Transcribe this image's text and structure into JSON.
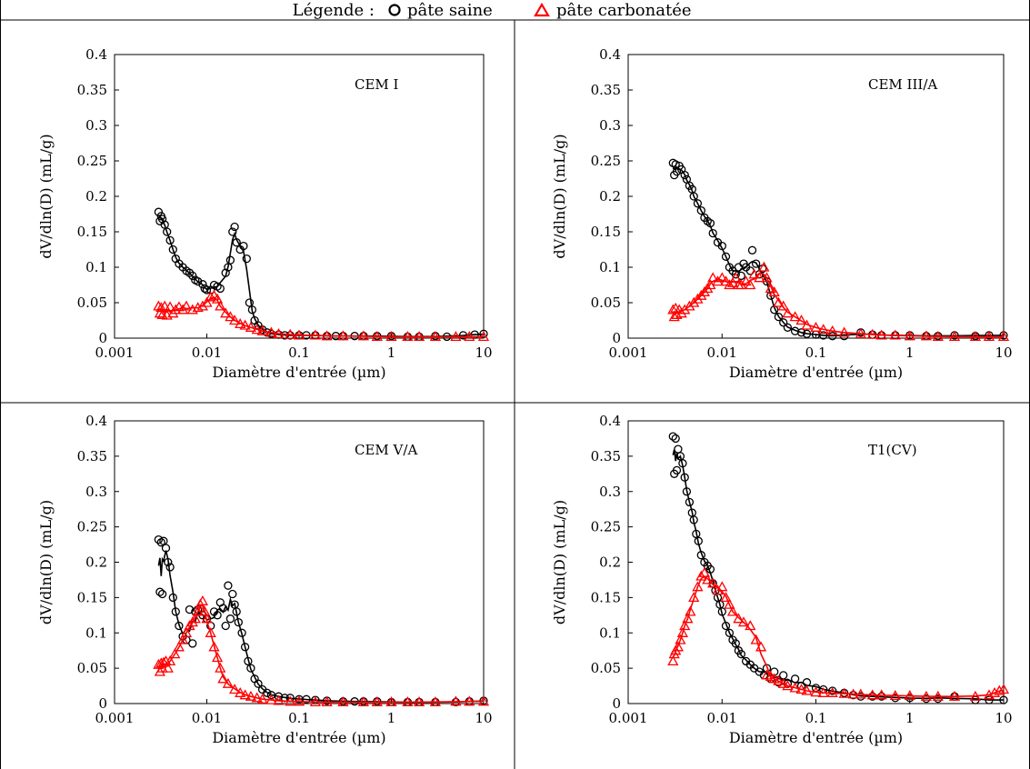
{
  "legend": {
    "label": "Légende :",
    "items": [
      {
        "name": "pâte saine",
        "marker": "circle",
        "color": "#000000"
      },
      {
        "name": "pâte carbonatée",
        "marker": "triangle",
        "color": "#ff0000"
      }
    ]
  },
  "chart_data": [
    {
      "type": "scatter",
      "title": "CEM I",
      "xlabel": "Diamètre d'entrée (µm)",
      "ylabel": "dV/dln(D) (mL/g)",
      "xscale": "log",
      "xlim": [
        0.001,
        10
      ],
      "ylim": [
        0,
        0.4
      ],
      "xticks": [
        "0.001",
        "0.01",
        "0.1",
        "1",
        "10"
      ],
      "yticks": [
        "0",
        "0.05",
        "0.1",
        "0.15",
        "0.2",
        "0.25",
        "0.3",
        "0.35",
        "0.4"
      ],
      "series": [
        {
          "name": "pâte saine",
          "marker": "circle",
          "color": "#000000",
          "x": [
            0.003,
            0.0031,
            0.0032,
            0.0033,
            0.0035,
            0.0037,
            0.004,
            0.0043,
            0.0046,
            0.005,
            0.0055,
            0.006,
            0.0065,
            0.007,
            0.0075,
            0.008,
            0.009,
            0.0095,
            0.01,
            0.011,
            0.012,
            0.013,
            0.014,
            0.016,
            0.017,
            0.018,
            0.019,
            0.02,
            0.021,
            0.023,
            0.025,
            0.027,
            0.029,
            0.031,
            0.033,
            0.036,
            0.04,
            0.045,
            0.05,
            0.06,
            0.07,
            0.08,
            0.1,
            0.12,
            0.15,
            0.2,
            0.25,
            0.3,
            0.4,
            0.5,
            0.7,
            1,
            1.5,
            2,
            3,
            4,
            6,
            8,
            10
          ],
          "y": [
            0.178,
            0.165,
            0.172,
            0.168,
            0.16,
            0.15,
            0.138,
            0.125,
            0.112,
            0.105,
            0.1,
            0.095,
            0.092,
            0.088,
            0.082,
            0.08,
            0.076,
            0.07,
            0.068,
            0.068,
            0.075,
            0.073,
            0.07,
            0.092,
            0.1,
            0.11,
            0.15,
            0.157,
            0.135,
            0.125,
            0.13,
            0.112,
            0.05,
            0.04,
            0.025,
            0.018,
            0.012,
            0.008,
            0.006,
            0.005,
            0.004,
            0.004,
            0.004,
            0.004,
            0.004,
            0.003,
            0.003,
            0.003,
            0.003,
            0.003,
            0.003,
            0.003,
            0.002,
            0.002,
            0.003,
            0.002,
            0.004,
            0.005,
            0.006
          ]
        },
        {
          "name": "pâte carbonatée",
          "marker": "triangle",
          "color": "#ff0000",
          "x": [
            0.003,
            0.0031,
            0.0032,
            0.0033,
            0.0035,
            0.0037,
            0.004,
            0.0043,
            0.0046,
            0.005,
            0.0055,
            0.006,
            0.007,
            0.008,
            0.009,
            0.01,
            0.011,
            0.012,
            0.013,
            0.014,
            0.016,
            0.018,
            0.02,
            0.023,
            0.026,
            0.03,
            0.035,
            0.04,
            0.05,
            0.06,
            0.08,
            0.1,
            0.15,
            0.2,
            0.3,
            0.5,
            0.7,
            1,
            1.5,
            2,
            3,
            5,
            7,
            10
          ],
          "y": [
            0.045,
            0.035,
            0.043,
            0.033,
            0.045,
            0.032,
            0.044,
            0.035,
            0.04,
            0.044,
            0.04,
            0.045,
            0.04,
            0.043,
            0.045,
            0.05,
            0.058,
            0.06,
            0.055,
            0.045,
            0.035,
            0.03,
            0.025,
            0.02,
            0.018,
            0.015,
            0.012,
            0.01,
            0.008,
            0.006,
            0.005,
            0.004,
            0.004,
            0.003,
            0.003,
            0.003,
            0.002,
            0.002,
            0.002,
            0.002,
            0.002,
            0.002,
            0.002,
            0.002
          ]
        }
      ]
    },
    {
      "type": "scatter",
      "title": "CEM III/A",
      "xlabel": "Diamètre d'entrée (µm)",
      "ylabel": "dV/dln(D) (mL/g)",
      "xscale": "log",
      "xlim": [
        0.001,
        10
      ],
      "ylim": [
        0,
        0.4
      ],
      "xticks": [
        "0.001",
        "0.01",
        "0.1",
        "1",
        "10"
      ],
      "yticks": [
        "0",
        "0.05",
        "0.1",
        "0.15",
        "0.2",
        "0.25",
        "0.3",
        "0.35",
        "0.4"
      ],
      "series": [
        {
          "name": "pâte saine",
          "marker": "circle",
          "color": "#000000",
          "x": [
            0.003,
            0.0031,
            0.0032,
            0.0033,
            0.0035,
            0.0037,
            0.004,
            0.0042,
            0.0045,
            0.0048,
            0.005,
            0.0055,
            0.006,
            0.0065,
            0.007,
            0.0075,
            0.008,
            0.009,
            0.01,
            0.011,
            0.012,
            0.013,
            0.014,
            0.015,
            0.016,
            0.017,
            0.018,
            0.02,
            0.021,
            0.023,
            0.025,
            0.027,
            0.03,
            0.033,
            0.036,
            0.04,
            0.045,
            0.05,
            0.06,
            0.07,
            0.08,
            0.1,
            0.12,
            0.15,
            0.2,
            0.3,
            0.4,
            0.5,
            0.7,
            1,
            1.5,
            2,
            3,
            5,
            7,
            10
          ],
          "y": [
            0.247,
            0.23,
            0.245,
            0.235,
            0.243,
            0.238,
            0.23,
            0.224,
            0.215,
            0.21,
            0.2,
            0.19,
            0.18,
            0.17,
            0.165,
            0.162,
            0.148,
            0.135,
            0.13,
            0.115,
            0.1,
            0.095,
            0.09,
            0.1,
            0.088,
            0.105,
            0.1,
            0.095,
            0.124,
            0.105,
            0.09,
            0.098,
            0.08,
            0.06,
            0.04,
            0.03,
            0.022,
            0.015,
            0.01,
            0.008,
            0.006,
            0.005,
            0.004,
            0.003,
            0.003,
            0.008,
            0.005,
            0.004,
            0.004,
            0.004,
            0.003,
            0.003,
            0.004,
            0.003,
            0.004,
            0.004
          ]
        },
        {
          "name": "pâte carbonatée",
          "marker": "triangle",
          "color": "#ff0000",
          "x": [
            0.003,
            0.0031,
            0.0032,
            0.0033,
            0.0035,
            0.0037,
            0.004,
            0.0045,
            0.005,
            0.0055,
            0.006,
            0.0065,
            0.007,
            0.0075,
            0.008,
            0.009,
            0.01,
            0.011,
            0.012,
            0.013,
            0.014,
            0.015,
            0.016,
            0.018,
            0.02,
            0.022,
            0.025,
            0.028,
            0.03,
            0.033,
            0.036,
            0.04,
            0.045,
            0.05,
            0.06,
            0.07,
            0.08,
            0.1,
            0.12,
            0.15,
            0.2,
            0.3,
            0.4,
            0.5,
            0.7,
            1,
            1.5,
            2,
            3,
            5,
            7,
            10
          ],
          "y": [
            0.04,
            0.03,
            0.042,
            0.033,
            0.04,
            0.035,
            0.04,
            0.045,
            0.05,
            0.055,
            0.06,
            0.065,
            0.07,
            0.075,
            0.085,
            0.08,
            0.085,
            0.08,
            0.075,
            0.078,
            0.085,
            0.075,
            0.075,
            0.08,
            0.075,
            0.09,
            0.085,
            0.1,
            0.085,
            0.07,
            0.065,
            0.05,
            0.045,
            0.035,
            0.03,
            0.025,
            0.018,
            0.015,
            0.012,
            0.01,
            0.008,
            0.006,
            0.005,
            0.004,
            0.004,
            0.003,
            0.003,
            0.002,
            0.002,
            0.002,
            0.002,
            0.002
          ]
        }
      ]
    },
    {
      "type": "scatter",
      "title": "CEM V/A",
      "xlabel": "Diamètre d'entrée (µm)",
      "ylabel": "dV/dln(D) (mL/g)",
      "xscale": "log",
      "xlim": [
        0.001,
        10
      ],
      "ylim": [
        0,
        0.4
      ],
      "xticks": [
        "0.001",
        "0.01",
        "0.1",
        "1",
        "10"
      ],
      "yticks": [
        "0",
        "0.05",
        "0.1",
        "0.15",
        "0.2",
        "0.25",
        "0.3",
        "0.35",
        "0.4"
      ],
      "series": [
        {
          "name": "pâte saine",
          "marker": "circle",
          "color": "#000000",
          "x": [
            0.003,
            0.0031,
            0.0032,
            0.0033,
            0.0034,
            0.0036,
            0.0038,
            0.004,
            0.0043,
            0.0046,
            0.005,
            0.0055,
            0.006,
            0.0065,
            0.007,
            0.0075,
            0.008,
            0.009,
            0.01,
            0.011,
            0.012,
            0.013,
            0.014,
            0.015,
            0.016,
            0.017,
            0.018,
            0.019,
            0.02,
            0.021,
            0.022,
            0.024,
            0.026,
            0.028,
            0.03,
            0.033,
            0.036,
            0.04,
            0.045,
            0.05,
            0.06,
            0.07,
            0.08,
            0.1,
            0.12,
            0.15,
            0.2,
            0.3,
            0.4,
            0.5,
            0.7,
            1,
            1.5,
            2,
            3,
            5,
            7,
            10
          ],
          "y": [
            0.232,
            0.158,
            0.228,
            0.155,
            0.23,
            0.22,
            0.2,
            0.193,
            0.15,
            0.13,
            0.11,
            0.095,
            0.09,
            0.133,
            0.085,
            0.13,
            0.133,
            0.125,
            0.12,
            0.11,
            0.13,
            0.125,
            0.143,
            0.135,
            0.11,
            0.167,
            0.12,
            0.155,
            0.14,
            0.13,
            0.115,
            0.1,
            0.08,
            0.06,
            0.05,
            0.035,
            0.028,
            0.02,
            0.015,
            0.012,
            0.01,
            0.008,
            0.008,
            0.006,
            0.006,
            0.005,
            0.004,
            0.003,
            0.003,
            0.003,
            0.003,
            0.002,
            0.002,
            0.002,
            0.002,
            0.002,
            0.003,
            0.004
          ]
        },
        {
          "name": "pâte carbonatée",
          "marker": "triangle",
          "color": "#ff0000",
          "x": [
            0.003,
            0.0031,
            0.0032,
            0.0033,
            0.0034,
            0.0036,
            0.0038,
            0.004,
            0.0045,
            0.005,
            0.0055,
            0.006,
            0.0065,
            0.007,
            0.0075,
            0.008,
            0.0085,
            0.009,
            0.0095,
            0.01,
            0.011,
            0.012,
            0.013,
            0.014,
            0.015,
            0.017,
            0.02,
            0.023,
            0.026,
            0.03,
            0.035,
            0.04,
            0.05,
            0.06,
            0.08,
            0.1,
            0.15,
            0.2,
            0.3,
            0.5,
            0.7,
            1,
            1.5,
            2,
            3,
            5,
            7,
            10
          ],
          "y": [
            0.055,
            0.045,
            0.057,
            0.05,
            0.058,
            0.06,
            0.05,
            0.06,
            0.07,
            0.08,
            0.09,
            0.1,
            0.11,
            0.115,
            0.12,
            0.13,
            0.14,
            0.145,
            0.13,
            0.12,
            0.1,
            0.08,
            0.065,
            0.05,
            0.035,
            0.028,
            0.02,
            0.015,
            0.012,
            0.01,
            0.008,
            0.006,
            0.005,
            0.004,
            0.003,
            0.003,
            0.002,
            0.002,
            0.002,
            0.002,
            0.002,
            0.002,
            0.002,
            0.002,
            0.002,
            0.003,
            0.003,
            0.003
          ]
        }
      ]
    },
    {
      "type": "scatter",
      "title": "T1(CV)",
      "xlabel": "Diamètre d'entrée (µm)",
      "ylabel": "dV/dln(D) (mL/g)",
      "xscale": "log",
      "xlim": [
        0.001,
        10
      ],
      "ylim": [
        0,
        0.4
      ],
      "xticks": [
        "0.001",
        "0.01",
        "0.1",
        "1",
        "10"
      ],
      "yticks": [
        "0",
        "0.05",
        "0.1",
        "0.15",
        "0.2",
        "0.25",
        "0.3",
        "0.35",
        "0.4"
      ],
      "series": [
        {
          "name": "pâte saine",
          "marker": "circle",
          "color": "#000000",
          "x": [
            0.003,
            0.0031,
            0.0032,
            0.0033,
            0.0034,
            0.0036,
            0.0038,
            0.004,
            0.0042,
            0.0045,
            0.0048,
            0.005,
            0.0053,
            0.0056,
            0.006,
            0.0065,
            0.007,
            0.0075,
            0.008,
            0.0085,
            0.009,
            0.0095,
            0.01,
            0.011,
            0.012,
            0.013,
            0.014,
            0.015,
            0.016,
            0.018,
            0.02,
            0.022,
            0.025,
            0.028,
            0.03,
            0.033,
            0.036,
            0.04,
            0.045,
            0.05,
            0.06,
            0.07,
            0.08,
            0.1,
            0.12,
            0.15,
            0.2,
            0.25,
            0.3,
            0.4,
            0.5,
            0.7,
            1,
            1.5,
            2,
            3,
            5,
            7,
            10
          ],
          "y": [
            0.378,
            0.325,
            0.375,
            0.33,
            0.36,
            0.35,
            0.34,
            0.32,
            0.3,
            0.285,
            0.27,
            0.26,
            0.24,
            0.23,
            0.21,
            0.2,
            0.195,
            0.19,
            0.17,
            0.16,
            0.15,
            0.14,
            0.13,
            0.11,
            0.1,
            0.09,
            0.085,
            0.075,
            0.07,
            0.06,
            0.055,
            0.05,
            0.045,
            0.04,
            0.05,
            0.035,
            0.045,
            0.03,
            0.04,
            0.028,
            0.035,
            0.025,
            0.03,
            0.022,
            0.02,
            0.018,
            0.015,
            0.012,
            0.01,
            0.01,
            0.01,
            0.008,
            0.008,
            0.007,
            0.007,
            0.01,
            0.005,
            0.005,
            0.005
          ]
        },
        {
          "name": "pâte carbonatée",
          "marker": "triangle",
          "color": "#ff0000",
          "x": [
            0.003,
            0.0031,
            0.0032,
            0.0034,
            0.0036,
            0.0038,
            0.004,
            0.0043,
            0.0046,
            0.005,
            0.0055,
            0.006,
            0.0065,
            0.007,
            0.008,
            0.009,
            0.01,
            0.011,
            0.012,
            0.013,
            0.015,
            0.017,
            0.02,
            0.023,
            0.026,
            0.03,
            0.033,
            0.036,
            0.04,
            0.045,
            0.05,
            0.06,
            0.07,
            0.08,
            0.1,
            0.12,
            0.15,
            0.2,
            0.25,
            0.3,
            0.4,
            0.5,
            0.7,
            1,
            1.5,
            2,
            3,
            5,
            7,
            8,
            9,
            10
          ],
          "y": [
            0.06,
            0.07,
            0.075,
            0.08,
            0.09,
            0.1,
            0.11,
            0.12,
            0.13,
            0.15,
            0.165,
            0.18,
            0.185,
            0.175,
            0.17,
            0.16,
            0.165,
            0.15,
            0.14,
            0.13,
            0.12,
            0.115,
            0.11,
            0.09,
            0.08,
            0.04,
            0.038,
            0.035,
            0.032,
            0.028,
            0.025,
            0.022,
            0.02,
            0.018,
            0.016,
            0.015,
            0.015,
            0.014,
            0.013,
            0.013,
            0.012,
            0.012,
            0.011,
            0.011,
            0.01,
            0.01,
            0.01,
            0.01,
            0.012,
            0.015,
            0.018,
            0.02
          ]
        }
      ]
    }
  ]
}
